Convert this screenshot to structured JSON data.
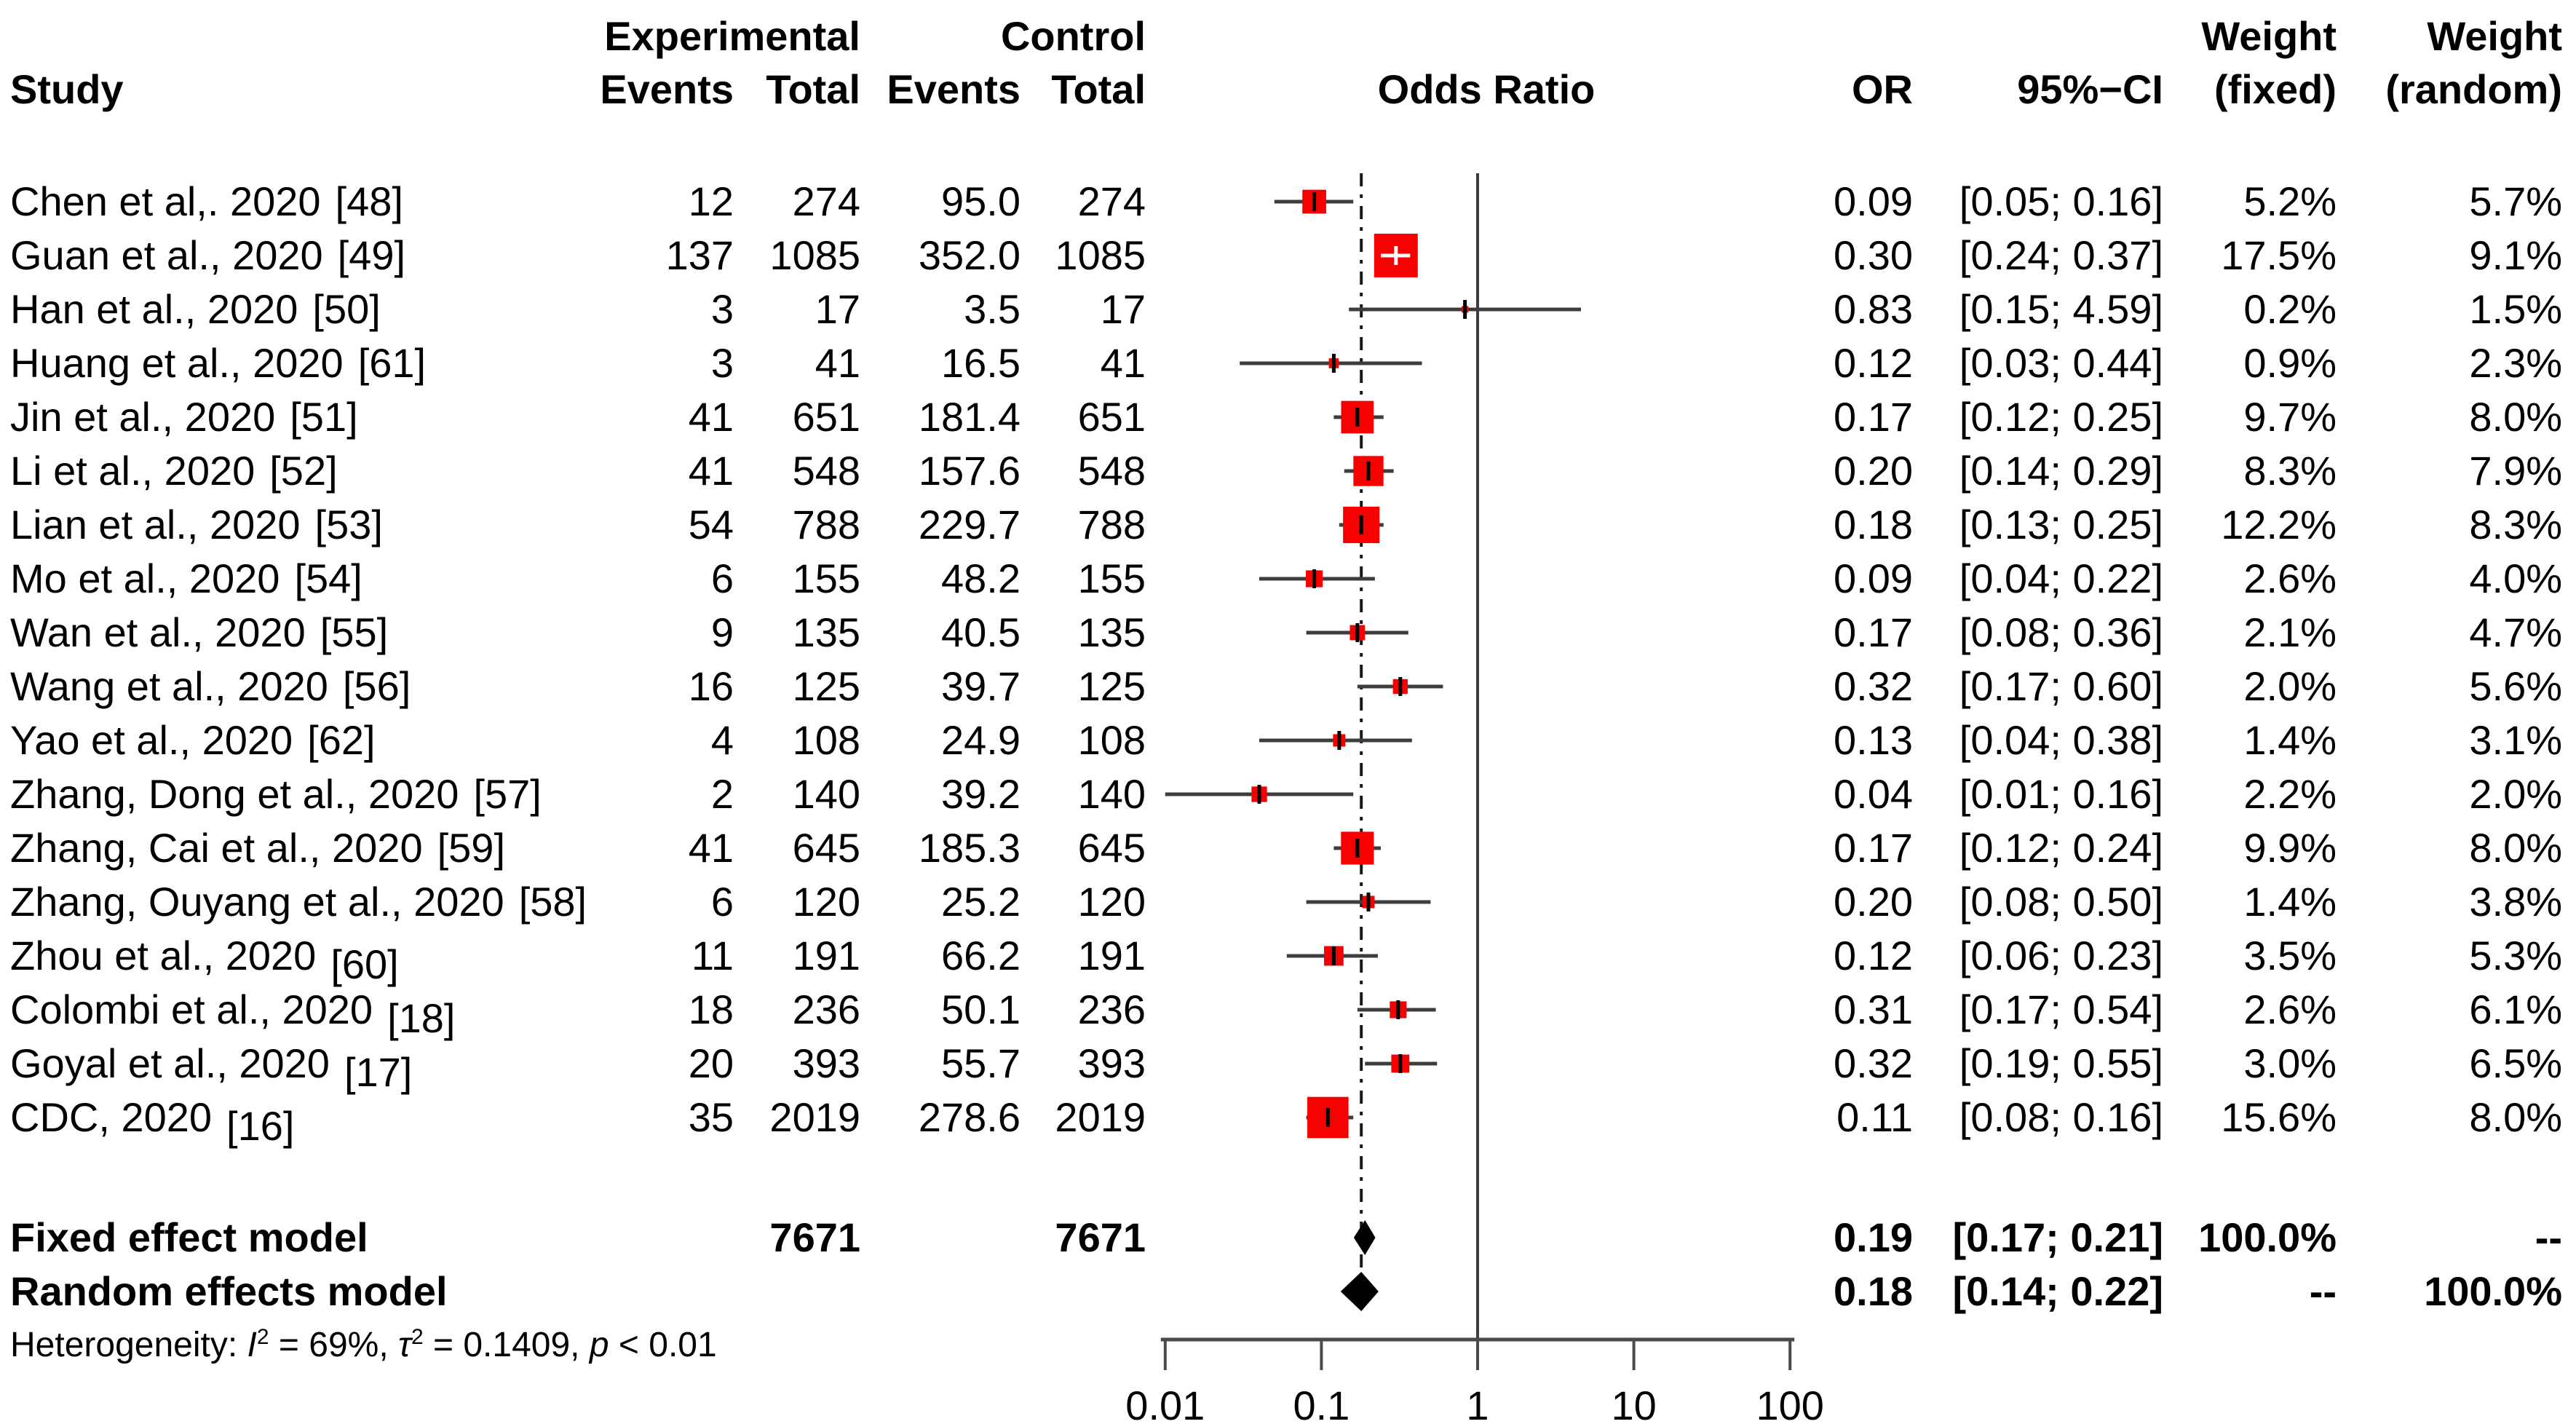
{
  "header": {
    "study": "Study",
    "experimental": "Experimental",
    "control": "Control",
    "events_exp": "Events",
    "total_exp": "Total",
    "events_ctrl": "Events",
    "total_ctrl": "Total",
    "odds_ratio": "Odds Ratio",
    "or": "OR",
    "ci": "95%−CI",
    "weight_fixed_top": "Weight",
    "weight_random_top": "Weight",
    "weight_fixed_sub": "(fixed)",
    "weight_random_sub": "(random)"
  },
  "colors": {
    "marker_fill": "#f70000",
    "ci_line": "#3d3d3d",
    "axis_line": "#4a4a4a",
    "ref_line": "#3d3d3d",
    "dash_line": "#1a1a1a",
    "diamond": "#000000",
    "text": "#000000"
  },
  "chart_data": {
    "type": "forest_plot",
    "title": "",
    "x_axis": {
      "scale": "log10",
      "ticks": [
        0.01,
        0.1,
        1,
        10,
        100
      ],
      "tick_labels": [
        "0.01",
        "0.1",
        "1",
        "10",
        "100"
      ],
      "solid_ref_line": 1,
      "dashed_ref_line": 0.18
    },
    "studies": [
      {
        "name": "Chen et al,. 2020",
        "ref": "[48]",
        "ref_sub": false,
        "ev_exp": "12",
        "tot_exp": "274",
        "ev_ctrl": "95.0",
        "tot_ctrl": "274",
        "or": 0.09,
        "lo": 0.05,
        "hi": 0.16,
        "or_text": "0.09",
        "ci_text": "[0.05; 0.16]",
        "w_fixed": 5.2,
        "w_random": 5.7,
        "w_fixed_text": "5.2%",
        "w_random_text": "5.7%"
      },
      {
        "name": "Guan et al., 2020",
        "ref": "[49]",
        "ref_sub": false,
        "ev_exp": "137",
        "tot_exp": "1085",
        "ev_ctrl": "352.0",
        "tot_ctrl": "1085",
        "or": 0.3,
        "lo": 0.24,
        "hi": 0.37,
        "or_text": "0.30",
        "ci_text": "[0.24; 0.37]",
        "w_fixed": 17.5,
        "w_random": 9.1,
        "w_fixed_text": "17.5%",
        "w_random_text": "9.1%"
      },
      {
        "name": "Han et al., 2020",
        "ref": "[50]",
        "ref_sub": false,
        "ev_exp": "3",
        "tot_exp": "17",
        "ev_ctrl": "3.5",
        "tot_ctrl": "17",
        "or": 0.83,
        "lo": 0.15,
        "hi": 4.59,
        "or_text": "0.83",
        "ci_text": "[0.15; 4.59]",
        "w_fixed": 0.2,
        "w_random": 1.5,
        "w_fixed_text": "0.2%",
        "w_random_text": "1.5%"
      },
      {
        "name": "Huang et al., 2020",
        "ref": "[61]",
        "ref_sub": false,
        "ev_exp": "3",
        "tot_exp": "41",
        "ev_ctrl": "16.5",
        "tot_ctrl": "41",
        "or": 0.12,
        "lo": 0.03,
        "hi": 0.44,
        "or_text": "0.12",
        "ci_text": "[0.03; 0.44]",
        "w_fixed": 0.9,
        "w_random": 2.3,
        "w_fixed_text": "0.9%",
        "w_random_text": "2.3%"
      },
      {
        "name": "Jin et al., 2020",
        "ref": "[51]",
        "ref_sub": false,
        "ev_exp": "41",
        "tot_exp": "651",
        "ev_ctrl": "181.4",
        "tot_ctrl": "651",
        "or": 0.17,
        "lo": 0.12,
        "hi": 0.25,
        "or_text": "0.17",
        "ci_text": "[0.12; 0.25]",
        "w_fixed": 9.7,
        "w_random": 8.0,
        "w_fixed_text": "9.7%",
        "w_random_text": "8.0%"
      },
      {
        "name": "Li et al., 2020",
        "ref": "[52]",
        "ref_sub": false,
        "ev_exp": "41",
        "tot_exp": "548",
        "ev_ctrl": "157.6",
        "tot_ctrl": "548",
        "or": 0.2,
        "lo": 0.14,
        "hi": 0.29,
        "or_text": "0.20",
        "ci_text": "[0.14; 0.29]",
        "w_fixed": 8.3,
        "w_random": 7.9,
        "w_fixed_text": "8.3%",
        "w_random_text": "7.9%"
      },
      {
        "name": "Lian et al., 2020",
        "ref": "[53]",
        "ref_sub": false,
        "ev_exp": "54",
        "tot_exp": "788",
        "ev_ctrl": "229.7",
        "tot_ctrl": "788",
        "or": 0.18,
        "lo": 0.13,
        "hi": 0.25,
        "or_text": "0.18",
        "ci_text": "[0.13; 0.25]",
        "w_fixed": 12.2,
        "w_random": 8.3,
        "w_fixed_text": "12.2%",
        "w_random_text": "8.3%"
      },
      {
        "name": "Mo et al., 2020",
        "ref": "[54]",
        "ref_sub": false,
        "ev_exp": "6",
        "tot_exp": "155",
        "ev_ctrl": "48.2",
        "tot_ctrl": "155",
        "or": 0.09,
        "lo": 0.04,
        "hi": 0.22,
        "or_text": "0.09",
        "ci_text": "[0.04; 0.22]",
        "w_fixed": 2.6,
        "w_random": 4.0,
        "w_fixed_text": "2.6%",
        "w_random_text": "4.0%"
      },
      {
        "name": "Wan et al., 2020",
        "ref": "[55]",
        "ref_sub": false,
        "ev_exp": "9",
        "tot_exp": "135",
        "ev_ctrl": "40.5",
        "tot_ctrl": "135",
        "or": 0.17,
        "lo": 0.08,
        "hi": 0.36,
        "or_text": "0.17",
        "ci_text": "[0.08; 0.36]",
        "w_fixed": 2.1,
        "w_random": 4.7,
        "w_fixed_text": "2.1%",
        "w_random_text": "4.7%"
      },
      {
        "name": "Wang et al., 2020",
        "ref": "[56]",
        "ref_sub": false,
        "ev_exp": "16",
        "tot_exp": "125",
        "ev_ctrl": "39.7",
        "tot_ctrl": "125",
        "or": 0.32,
        "lo": 0.17,
        "hi": 0.6,
        "or_text": "0.32",
        "ci_text": "[0.17; 0.60]",
        "w_fixed": 2.0,
        "w_random": 5.6,
        "w_fixed_text": "2.0%",
        "w_random_text": "5.6%"
      },
      {
        "name": "Yao et al., 2020",
        "ref": "[62]",
        "ref_sub": false,
        "ev_exp": "4",
        "tot_exp": "108",
        "ev_ctrl": "24.9",
        "tot_ctrl": "108",
        "or": 0.13,
        "lo": 0.04,
        "hi": 0.38,
        "or_text": "0.13",
        "ci_text": "[0.04; 0.38]",
        "w_fixed": 1.4,
        "w_random": 3.1,
        "w_fixed_text": "1.4%",
        "w_random_text": "3.1%"
      },
      {
        "name": "Zhang, Dong et al., 2020",
        "ref": "[57]",
        "ref_sub": false,
        "ev_exp": "2",
        "tot_exp": "140",
        "ev_ctrl": "39.2",
        "tot_ctrl": "140",
        "or": 0.04,
        "lo": 0.01,
        "hi": 0.16,
        "or_text": "0.04",
        "ci_text": "[0.01; 0.16]",
        "w_fixed": 2.2,
        "w_random": 2.0,
        "w_fixed_text": "2.2%",
        "w_random_text": "2.0%"
      },
      {
        "name": "Zhang, Cai et al., 2020",
        "ref": "[59]",
        "ref_sub": false,
        "ev_exp": "41",
        "tot_exp": "645",
        "ev_ctrl": "185.3",
        "tot_ctrl": "645",
        "or": 0.17,
        "lo": 0.12,
        "hi": 0.24,
        "or_text": "0.17",
        "ci_text": "[0.12; 0.24]",
        "w_fixed": 9.9,
        "w_random": 8.0,
        "w_fixed_text": "9.9%",
        "w_random_text": "8.0%"
      },
      {
        "name": "Zhang, Ouyang et al., 2020",
        "ref": "[58]",
        "ref_sub": false,
        "ev_exp": "6",
        "tot_exp": "120",
        "ev_ctrl": "25.2",
        "tot_ctrl": "120",
        "or": 0.2,
        "lo": 0.08,
        "hi": 0.5,
        "or_text": "0.20",
        "ci_text": "[0.08; 0.50]",
        "w_fixed": 1.4,
        "w_random": 3.8,
        "w_fixed_text": "1.4%",
        "w_random_text": "3.8%"
      },
      {
        "name": "Zhou et al., 2020",
        "ref": "[60]",
        "ref_sub": true,
        "ev_exp": "11",
        "tot_exp": "191",
        "ev_ctrl": "66.2",
        "tot_ctrl": "191",
        "or": 0.12,
        "lo": 0.06,
        "hi": 0.23,
        "or_text": "0.12",
        "ci_text": "[0.06; 0.23]",
        "w_fixed": 3.5,
        "w_random": 5.3,
        "w_fixed_text": "3.5%",
        "w_random_text": "5.3%"
      },
      {
        "name": "Colombi et al., 2020",
        "ref": "[18]",
        "ref_sub": true,
        "ev_exp": "18",
        "tot_exp": "236",
        "ev_ctrl": "50.1",
        "tot_ctrl": "236",
        "or": 0.31,
        "lo": 0.17,
        "hi": 0.54,
        "or_text": "0.31",
        "ci_text": "[0.17; 0.54]",
        "w_fixed": 2.6,
        "w_random": 6.1,
        "w_fixed_text": "2.6%",
        "w_random_text": "6.1%"
      },
      {
        "name": "Goyal et al., 2020",
        "ref": "[17]",
        "ref_sub": true,
        "ev_exp": "20",
        "tot_exp": "393",
        "ev_ctrl": "55.7",
        "tot_ctrl": "393",
        "or": 0.32,
        "lo": 0.19,
        "hi": 0.55,
        "or_text": "0.32",
        "ci_text": "[0.19; 0.55]",
        "w_fixed": 3.0,
        "w_random": 6.5,
        "w_fixed_text": "3.0%",
        "w_random_text": "6.5%"
      },
      {
        "name": "CDC, 2020",
        "ref": "[16]",
        "ref_sub": true,
        "ev_exp": "35",
        "tot_exp": "2019",
        "ev_ctrl": "278.6",
        "tot_ctrl": "2019",
        "or": 0.11,
        "lo": 0.08,
        "hi": 0.16,
        "or_text": "0.11",
        "ci_text": "[0.08; 0.16]",
        "w_fixed": 15.6,
        "w_random": 8.0,
        "w_fixed_text": "15.6%",
        "w_random_text": "8.0%"
      }
    ],
    "summaries": [
      {
        "label": "Fixed effect model",
        "tot_exp": "7671",
        "tot_ctrl": "7671",
        "or": 0.19,
        "lo": 0.17,
        "hi": 0.21,
        "or_text": "0.19",
        "ci_text": "[0.17; 0.21]",
        "w_fixed_text": "100.0%",
        "w_random_text": "--"
      },
      {
        "label": "Random effects model",
        "tot_exp": "",
        "tot_ctrl": "",
        "or": 0.18,
        "lo": 0.14,
        "hi": 0.22,
        "or_text": "0.18",
        "ci_text": "[0.14; 0.22]",
        "w_fixed_text": "--",
        "w_random_text": "100.0%"
      }
    ],
    "heterogeneity": {
      "full_text": "Heterogeneity: I² = 69%, τ² = 0.1409, p < 0.01",
      "segments": [
        {
          "text": "Heterogeneity: "
        },
        {
          "text": "I",
          "italic": true
        },
        {
          "text": "2",
          "sup": true
        },
        {
          "text": " = 69%, "
        },
        {
          "text": "τ",
          "italic": true
        },
        {
          "text": "2",
          "sup": true
        },
        {
          "text": " = 0.1409, "
        },
        {
          "text": "p",
          "italic": true
        },
        {
          "text": " < 0.01"
        }
      ]
    }
  }
}
